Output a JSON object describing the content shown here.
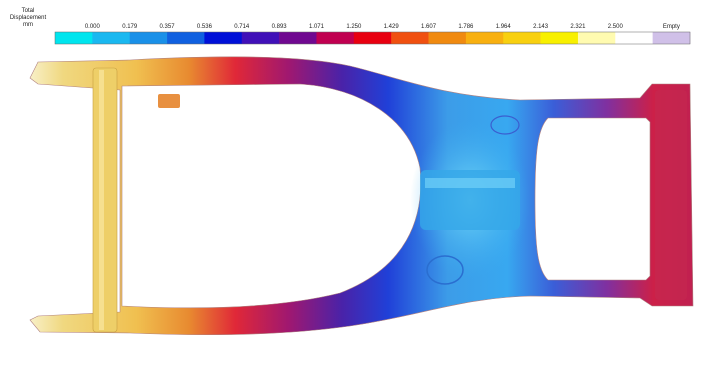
{
  "legend": {
    "title": [
      "Total",
      "Displacement",
      "mm"
    ],
    "labels": [
      "0.000",
      "0.179",
      "0.357",
      "0.536",
      "0.714",
      "0.893",
      "1.071",
      "1.250",
      "1.429",
      "1.607",
      "1.786",
      "1.964",
      "2.143",
      "2.321",
      "2.500",
      "Empty"
    ],
    "colors": [
      "#00e5ee",
      "#1ab8f0",
      "#1a90e8",
      "#1060e0",
      "#0010d8",
      "#4010b8",
      "#700890",
      "#c00050",
      "#e80010",
      "#f05010",
      "#f08a10",
      "#f8b010",
      "#f8d010",
      "#f8f000",
      "#fffbb0",
      "#ffffff",
      "#d0c0e8"
    ]
  }
}
